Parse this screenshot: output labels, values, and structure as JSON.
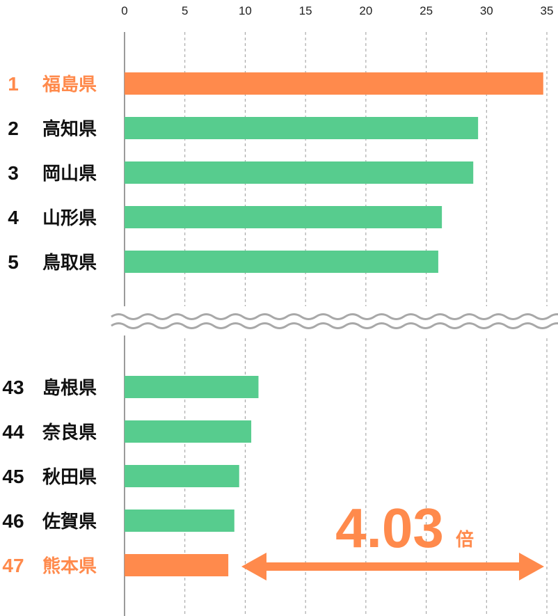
{
  "colors": {
    "highlight": "#FF8A4C",
    "normal": "#57CC8E",
    "text": "#111111",
    "grid": "#9A9A9A",
    "break": "#A8A8A8"
  },
  "chart_data": {
    "type": "bar",
    "orientation": "horizontal",
    "xlim": [
      0,
      35
    ],
    "x_ticks": [
      "0",
      "5",
      "10",
      "15",
      "20",
      "25",
      "30",
      "35"
    ],
    "grid": true,
    "axis_break_after_index": 4,
    "rows": [
      {
        "rank": "1",
        "name": "福島県",
        "value": 34.7,
        "highlight": true
      },
      {
        "rank": "2",
        "name": "高知県",
        "value": 29.3,
        "highlight": false
      },
      {
        "rank": "3",
        "name": "岡山県",
        "value": 28.9,
        "highlight": false
      },
      {
        "rank": "4",
        "name": "山形県",
        "value": 26.3,
        "highlight": false
      },
      {
        "rank": "5",
        "name": "鳥取県",
        "value": 26.0,
        "highlight": false
      },
      {
        "rank": "43",
        "name": "島根県",
        "value": 11.1,
        "highlight": false
      },
      {
        "rank": "44",
        "name": "奈良県",
        "value": 10.5,
        "highlight": false
      },
      {
        "rank": "45",
        "name": "秋田県",
        "value": 9.5,
        "highlight": false
      },
      {
        "rank": "46",
        "name": "佐賀県",
        "value": 9.1,
        "highlight": false
      },
      {
        "rank": "47",
        "name": "熊本県",
        "value": 8.6,
        "highlight": true
      }
    ],
    "annotation": {
      "ratio": "4.03",
      "unit": "倍"
    }
  }
}
